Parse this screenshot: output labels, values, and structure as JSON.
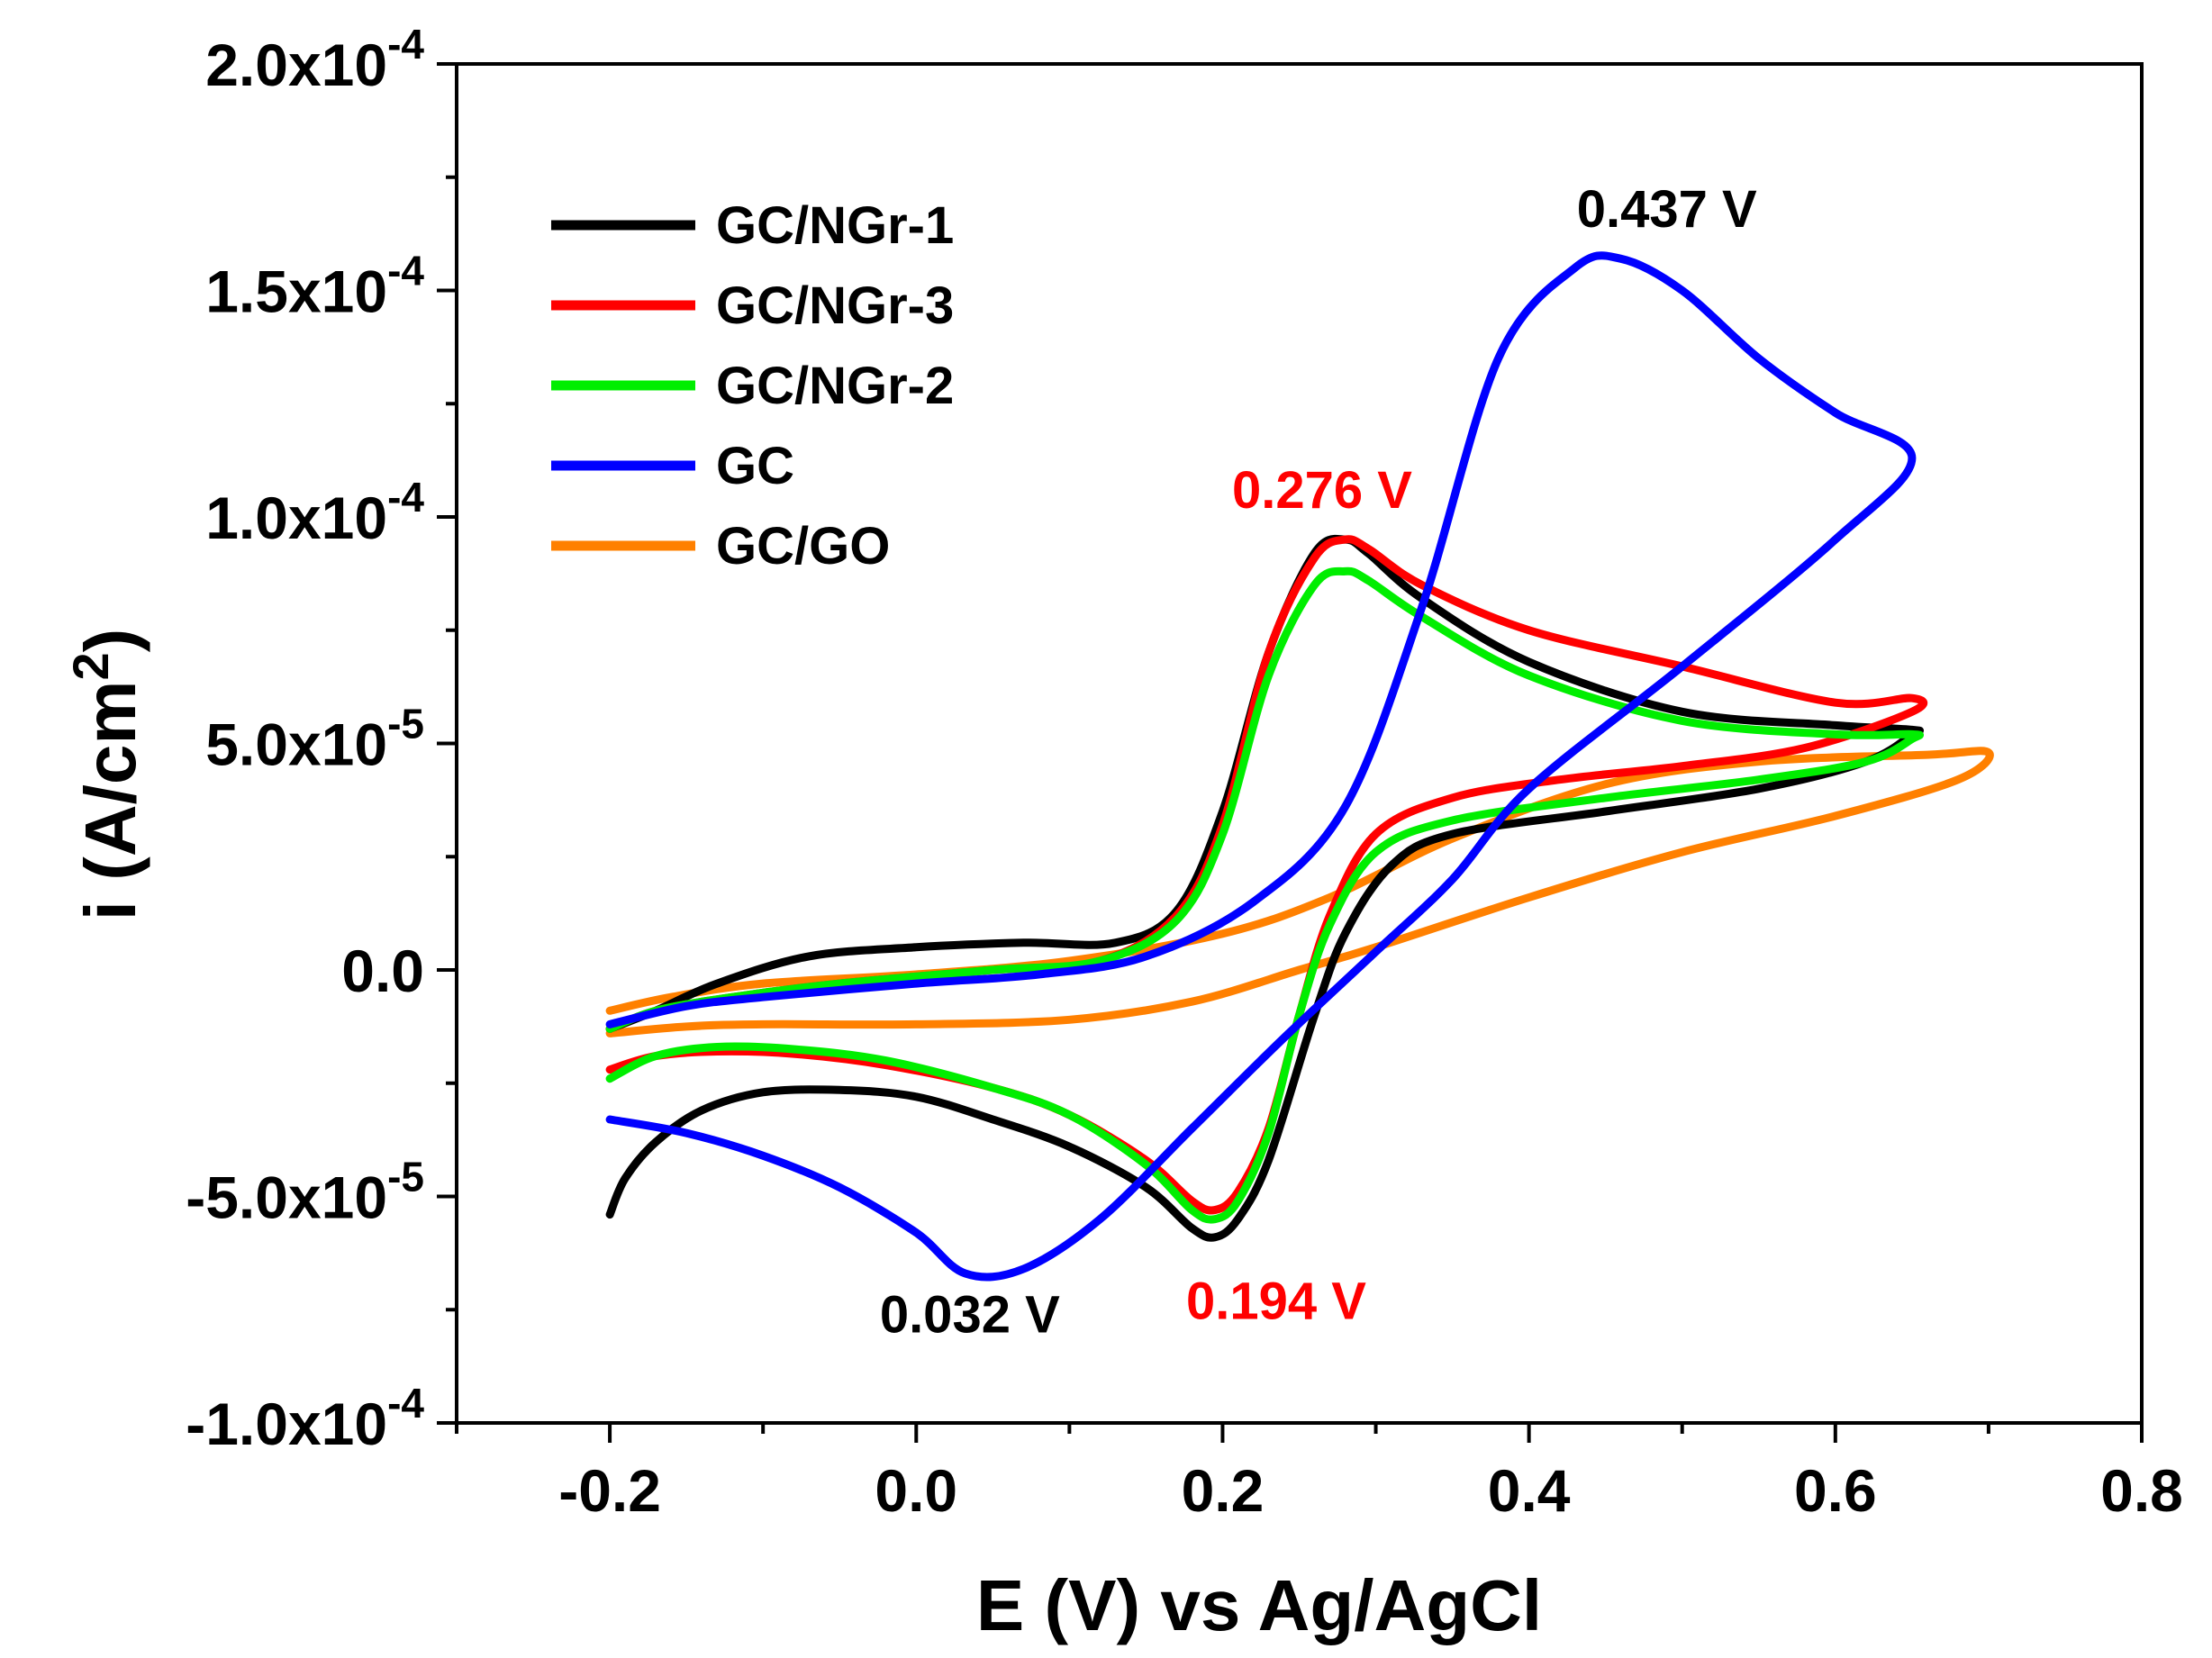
{
  "chart_data": {
    "type": "line",
    "title": "",
    "xlabel": "E (V) vs Ag/AgCl",
    "ylabel": {
      "main": "i (A/cm",
      "sup": "2",
      "close": ")"
    },
    "xlim": [
      -0.3,
      0.8
    ],
    "ylim": [
      -0.0001,
      0.0002
    ],
    "grid": false,
    "legend_position": "top-left",
    "x_ticks": [
      {
        "value": -0.2,
        "label": "-0.2"
      },
      {
        "value": 0.0,
        "label": "0.0"
      },
      {
        "value": 0.2,
        "label": "0.2"
      },
      {
        "value": 0.4,
        "label": "0.4"
      },
      {
        "value": 0.6,
        "label": "0.6"
      },
      {
        "value": 0.8,
        "label": "0.8"
      }
    ],
    "y_ticks": [
      {
        "value": 0.0002,
        "mant": "2.0x10",
        "exp": "-4"
      },
      {
        "value": 0.00015,
        "mant": "1.5x10",
        "exp": "-4"
      },
      {
        "value": 0.0001,
        "mant": "1.0x10",
        "exp": "-4"
      },
      {
        "value": 5e-05,
        "mant": "5.0x10",
        "exp": "-5"
      },
      {
        "value": 0.0,
        "mant": "0.0",
        "exp": ""
      },
      {
        "value": -5e-05,
        "mant": "-5.0x10",
        "exp": "-5"
      },
      {
        "value": -0.0001,
        "mant": "-1.0x10",
        "exp": "-4"
      }
    ],
    "x_minor_step": 0.1,
    "y_minor_step": 2.5e-05,
    "series": [
      {
        "name": "GC/GO",
        "color": "#ff8000",
        "points": [
          [
            -0.2,
            -1.4e-05
          ],
          [
            -0.15,
            -1.25e-05
          ],
          [
            -0.1,
            -1.2e-05
          ],
          [
            0.0,
            -1.2e-05
          ],
          [
            0.1,
            -1.1e-05
          ],
          [
            0.18,
            -7e-06
          ],
          [
            0.25,
            0.0
          ],
          [
            0.3,
            5e-06
          ],
          [
            0.4,
            1.6e-05
          ],
          [
            0.5,
            2.6e-05
          ],
          [
            0.6,
            3.4e-05
          ],
          [
            0.68,
            4.2e-05
          ],
          [
            0.7,
            4.8e-05
          ],
          [
            0.66,
            4.75e-05
          ],
          [
            0.55,
            4.6e-05
          ],
          [
            0.45,
            4.1e-05
          ],
          [
            0.35,
            2.9e-05
          ],
          [
            0.27,
            1.6e-05
          ],
          [
            0.2,
            8e-06
          ],
          [
            0.1,
            2e-06
          ],
          [
            0.0,
            -1e-06
          ],
          [
            -0.1,
            -3e-06
          ],
          [
            -0.16,
            -6e-06
          ],
          [
            -0.2,
            -9e-06
          ]
        ]
      },
      {
        "name": "GC/NGr-1",
        "color": "#000000",
        "points": [
          [
            -0.2,
            -5.4e-05
          ],
          [
            -0.19,
            -4.6e-05
          ],
          [
            -0.17,
            -3.8e-05
          ],
          [
            -0.14,
            -3.1e-05
          ],
          [
            -0.1,
            -2.7e-05
          ],
          [
            -0.05,
            -2.65e-05
          ],
          [
            0.0,
            -2.8e-05
          ],
          [
            0.05,
            -3.3e-05
          ],
          [
            0.1,
            -3.9e-05
          ],
          [
            0.15,
            -4.8e-05
          ],
          [
            0.18,
            -5.7e-05
          ],
          [
            0.195,
            -5.9e-05
          ],
          [
            0.21,
            -5.5e-05
          ],
          [
            0.23,
            -4.2e-05
          ],
          [
            0.26,
            -1e-05
          ],
          [
            0.28,
            8e-06
          ],
          [
            0.31,
            2.3e-05
          ],
          [
            0.35,
            3e-05
          ],
          [
            0.45,
            3.5e-05
          ],
          [
            0.55,
            4e-05
          ],
          [
            0.62,
            4.6e-05
          ],
          [
            0.65,
            5.2e-05
          ],
          [
            0.65,
            5.3e-05
          ],
          [
            0.6,
            5.4e-05
          ],
          [
            0.5,
            5.7e-05
          ],
          [
            0.4,
            6.8e-05
          ],
          [
            0.33,
            8.2e-05
          ],
          [
            0.295,
            9.2e-05
          ],
          [
            0.28,
            9.5e-05
          ],
          [
            0.26,
            9.2e-05
          ],
          [
            0.23,
            7e-05
          ],
          [
            0.2,
            3.5e-05
          ],
          [
            0.17,
            1.3e-05
          ],
          [
            0.13,
            6e-06
          ],
          [
            0.07,
            6e-06
          ],
          [
            0.0,
            5e-06
          ],
          [
            -0.07,
            3e-06
          ],
          [
            -0.13,
            -3e-06
          ],
          [
            -0.17,
            -9e-06
          ],
          [
            -0.2,
            -1.3e-05
          ]
        ]
      },
      {
        "name": "GC/NGr-3",
        "color": "#ff0000",
        "points": [
          [
            -0.2,
            -2.2e-05
          ],
          [
            -0.17,
            -1.9e-05
          ],
          [
            -0.13,
            -1.8e-05
          ],
          [
            -0.08,
            -1.85e-05
          ],
          [
            -0.02,
            -2.1e-05
          ],
          [
            0.05,
            -2.6e-05
          ],
          [
            0.1,
            -3.2e-05
          ],
          [
            0.15,
            -4.2e-05
          ],
          [
            0.18,
            -5.1e-05
          ],
          [
            0.195,
            -5.3e-05
          ],
          [
            0.21,
            -4.9e-05
          ],
          [
            0.23,
            -3.5e-05
          ],
          [
            0.25,
            -1e-05
          ],
          [
            0.27,
            1.2e-05
          ],
          [
            0.3,
            3e-05
          ],
          [
            0.35,
            3.8e-05
          ],
          [
            0.42,
            4.2e-05
          ],
          [
            0.5,
            4.5e-05
          ],
          [
            0.58,
            4.9e-05
          ],
          [
            0.65,
            5.7e-05
          ],
          [
            0.65,
            6e-05
          ],
          [
            0.6,
            5.9e-05
          ],
          [
            0.5,
            6.7e-05
          ],
          [
            0.4,
            7.5e-05
          ],
          [
            0.33,
            8.5e-05
          ],
          [
            0.295,
            9.3e-05
          ],
          [
            0.28,
            9.5e-05
          ],
          [
            0.26,
            9.1e-05
          ],
          [
            0.23,
            7e-05
          ],
          [
            0.2,
            3.2e-05
          ],
          [
            0.17,
            1.2e-05
          ],
          [
            0.12,
            2e-06
          ],
          [
            0.05,
            0.0
          ],
          [
            -0.05,
            -3e-06
          ],
          [
            -0.12,
            -6e-06
          ],
          [
            -0.17,
            -9e-06
          ],
          [
            -0.2,
            -1.3e-05
          ]
        ]
      },
      {
        "name": "GC/NGr-2",
        "color": "#00ee00",
        "points": [
          [
            -0.2,
            -2.4e-05
          ],
          [
            -0.17,
            -1.9e-05
          ],
          [
            -0.13,
            -1.7e-05
          ],
          [
            -0.08,
            -1.75e-05
          ],
          [
            -0.02,
            -2e-05
          ],
          [
            0.05,
            -2.6e-05
          ],
          [
            0.1,
            -3.2e-05
          ],
          [
            0.15,
            -4.3e-05
          ],
          [
            0.18,
            -5.3e-05
          ],
          [
            0.195,
            -5.5e-05
          ],
          [
            0.21,
            -5.1e-05
          ],
          [
            0.23,
            -3.6e-05
          ],
          [
            0.25,
            -1e-05
          ],
          [
            0.27,
            1e-05
          ],
          [
            0.3,
            2.6e-05
          ],
          [
            0.35,
            3.3e-05
          ],
          [
            0.45,
            3.8e-05
          ],
          [
            0.55,
            4.2e-05
          ],
          [
            0.62,
            4.6e-05
          ],
          [
            0.65,
            5.1e-05
          ],
          [
            0.65,
            5.2e-05
          ],
          [
            0.6,
            5.2e-05
          ],
          [
            0.5,
            5.5e-05
          ],
          [
            0.4,
            6.5e-05
          ],
          [
            0.33,
            7.8e-05
          ],
          [
            0.295,
            8.6e-05
          ],
          [
            0.28,
            8.8e-05
          ],
          [
            0.26,
            8.5e-05
          ],
          [
            0.23,
            6.5e-05
          ],
          [
            0.2,
            3e-05
          ],
          [
            0.17,
            1.1e-05
          ],
          [
            0.12,
            2e-06
          ],
          [
            0.05,
            0.0
          ],
          [
            -0.05,
            -3e-06
          ],
          [
            -0.12,
            -6e-06
          ],
          [
            -0.17,
            -9e-06
          ],
          [
            -0.2,
            -1.3e-05
          ]
        ]
      },
      {
        "name": "GC",
        "color": "#0000ff",
        "points": [
          [
            -0.2,
            -3.3e-05
          ],
          [
            -0.15,
            -3.6e-05
          ],
          [
            -0.1,
            -4.1e-05
          ],
          [
            -0.05,
            -4.8e-05
          ],
          [
            0.0,
            -5.8e-05
          ],
          [
            0.032,
            -6.7e-05
          ],
          [
            0.07,
            -6.6e-05
          ],
          [
            0.12,
            -5.5e-05
          ],
          [
            0.18,
            -3.5e-05
          ],
          [
            0.24,
            -1.5e-05
          ],
          [
            0.3,
            4e-06
          ],
          [
            0.35,
            2e-05
          ],
          [
            0.4,
            4e-05
          ],
          [
            0.5,
            6.7e-05
          ],
          [
            0.6,
            9.5e-05
          ],
          [
            0.65,
            0.000113
          ],
          [
            0.6,
            0.000123
          ],
          [
            0.55,
            0.000135
          ],
          [
            0.5,
            0.00015
          ],
          [
            0.46,
            0.000157
          ],
          [
            0.43,
            0.000155
          ],
          [
            0.38,
            0.000135
          ],
          [
            0.33,
            8e-05
          ],
          [
            0.28,
            3.6e-05
          ],
          [
            0.22,
            1.5e-05
          ],
          [
            0.15,
            3e-06
          ],
          [
            0.08,
            -1e-06
          ],
          [
            0.0,
            -3e-06
          ],
          [
            -0.1,
            -6e-06
          ],
          [
            -0.15,
            -8e-06
          ],
          [
            -0.2,
            -1.2e-05
          ]
        ]
      }
    ],
    "annotations": [
      {
        "text": "0.437 V",
        "color": "#000000",
        "x": 0.49,
        "y": 0.000164
      },
      {
        "text": "0.276 V",
        "color": "#ff0000",
        "x": 0.265,
        "y": 0.000102
      },
      {
        "text": "0.032 V",
        "color": "#000000",
        "x": 0.035,
        "y": -8e-05
      },
      {
        "text": "0.194 V",
        "color": "#ff0000",
        "x": 0.235,
        "y": -7.7e-05
      }
    ],
    "legend": [
      {
        "name": "GC/NGr-1",
        "color": "#000000"
      },
      {
        "name": "GC/NGr-3",
        "color": "#ff0000"
      },
      {
        "name": "GC/NGr-2",
        "color": "#00ee00"
      },
      {
        "name": "GC",
        "color": "#0000ff"
      },
      {
        "name": "GC/GO",
        "color": "#ff8000"
      }
    ]
  }
}
